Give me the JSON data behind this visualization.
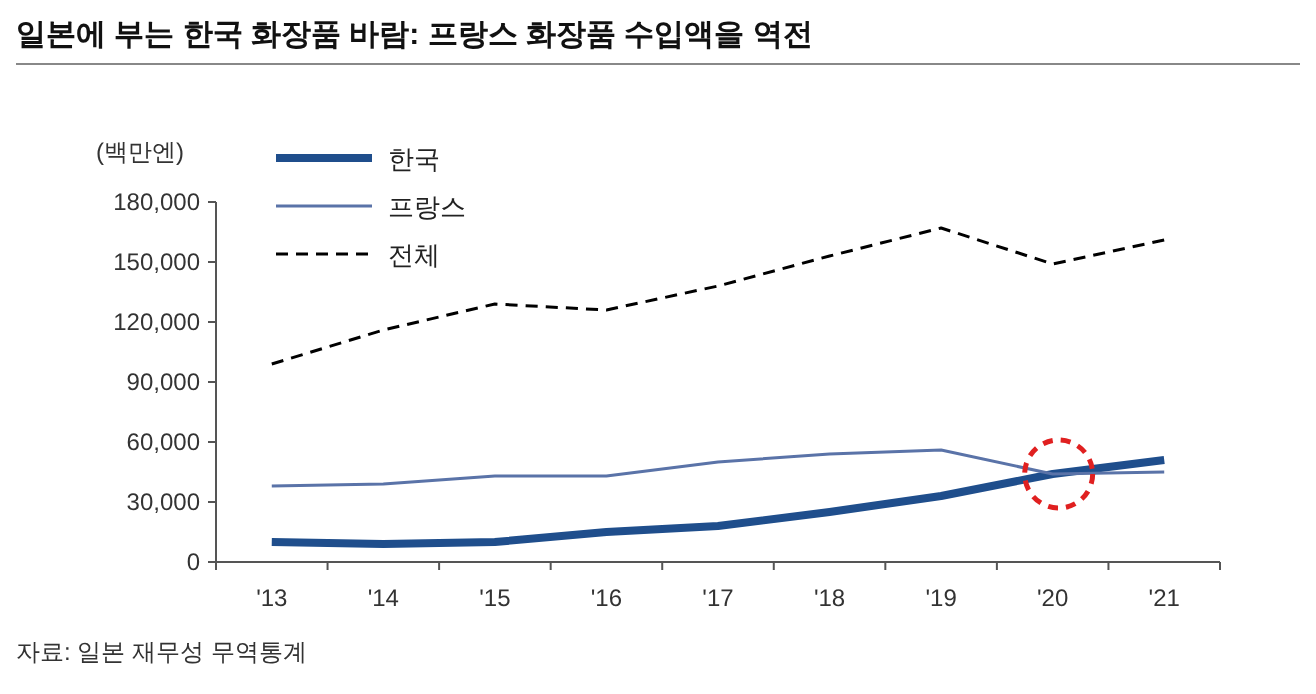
{
  "chart_data": {
    "type": "line",
    "title": "일본에 부는 한국 화장품 바람: 프랑스 화장품 수입액을 역전",
    "ylabel": "(백만엔)",
    "categories": [
      "'13",
      "'14",
      "'15",
      "'16",
      "'17",
      "'18",
      "'19",
      "'20",
      "'21"
    ],
    "series": [
      {
        "name": "한국",
        "color": "#1f4e8c",
        "values": [
          10000,
          9000,
          10000,
          15000,
          18000,
          25000,
          33000,
          44000,
          51000
        ],
        "line_style": "solid"
      },
      {
        "name": "프랑스",
        "color": "#5a73a8",
        "values": [
          38000,
          39000,
          43000,
          43000,
          50000,
          54000,
          56000,
          44000,
          45000
        ],
        "line_style": "solid"
      },
      {
        "name": "전체",
        "color": "#000000",
        "values": [
          99000,
          116000,
          129000,
          126000,
          138000,
          153000,
          167000,
          149000,
          161000
        ],
        "line_style": "dashed"
      }
    ],
    "ylim": [
      0,
      180000
    ],
    "yticks": [
      0,
      {
        "value": 30000,
        "label": "30,000"
      },
      {
        "value": 60000,
        "label": "60,000"
      },
      {
        "value": 90000,
        "label": "90,000"
      },
      {
        "value": 120000,
        "label": "120,000"
      },
      {
        "value": 150000,
        "label": "150,000"
      },
      {
        "value": 180000,
        "label": "180,000"
      }
    ],
    "legend": "top left",
    "grid": false,
    "marker": "none",
    "annotations": [
      "자료: 일본 재무성 무역통계"
    ]
  }
}
